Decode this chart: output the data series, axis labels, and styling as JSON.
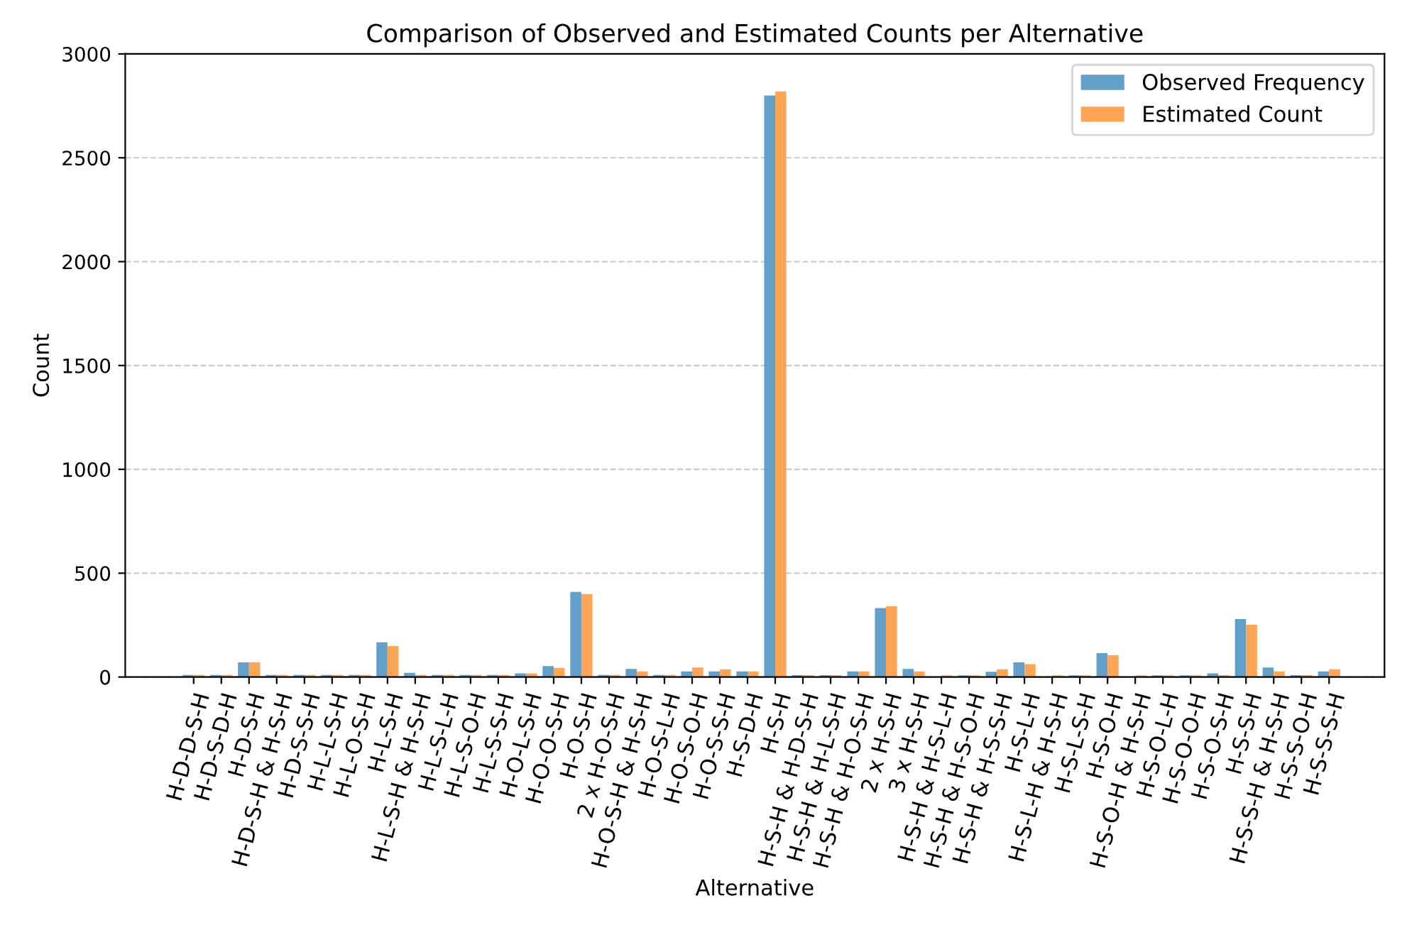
{
  "chart_data": {
    "type": "bar",
    "title": "Comparison of Observed and Estimated Counts per Alternative",
    "xlabel": "Alternative",
    "ylabel": "Count",
    "categories": [
      "H-D-D-S-H",
      "H-D-S-D-H",
      "H-D-S-H",
      "H-D-S-H & H-S-H",
      "H-D-S-S-H",
      "H-L-L-S-H",
      "H-L-O-S-H",
      "H-L-S-H",
      "H-L-S-H & H-S-H",
      "H-L-S-L-H",
      "H-L-S-O-H",
      "H-L-S-S-H",
      "H-O-L-S-H",
      "H-O-O-S-H",
      "H-O-S-H",
      "2 x H-O-S-H",
      "H-O-S-H & H-S-H",
      "H-O-S-L-H",
      "H-O-S-O-H",
      "H-O-S-S-H",
      "H-S-D-H",
      "H-S-H",
      "H-S-H & H-D-S-H",
      "H-S-H & H-L-S-H",
      "H-S-H & H-O-S-H",
      "2 x H-S-H",
      "3 x H-S-H",
      "H-S-H & H-S-L-H",
      "H-S-H & H-S-O-H",
      "H-S-H & H-S-S-H",
      "H-S-L-H",
      "H-S-L-H & H-S-H",
      "H-S-L-S-H",
      "H-S-O-H",
      "H-S-O-H & H-S-H",
      "H-S-O-L-H",
      "H-S-O-O-H",
      "H-S-O-S-H",
      "H-S-S-H",
      "H-S-S-H & H-S-H",
      "H-S-S-O-H",
      "H-S-S-S-H"
    ],
    "series": [
      {
        "name": "Observed Frequency",
        "color": "#62a0ca",
        "values": [
          10,
          10,
          71,
          10,
          10,
          10,
          10,
          167,
          20,
          10,
          10,
          10,
          18,
          53,
          410,
          10,
          39,
          10,
          27,
          27,
          27,
          2800,
          9,
          9,
          27,
          332,
          39,
          0,
          8,
          25,
          71,
          0,
          8,
          115,
          0,
          8,
          8,
          18,
          279,
          46,
          9,
          27
        ]
      },
      {
        "name": "Estimated Count",
        "color": "#ffa556",
        "values": [
          10,
          10,
          71,
          10,
          10,
          10,
          10,
          149,
          10,
          10,
          10,
          10,
          18,
          44,
          400,
          10,
          27,
          10,
          46,
          37,
          27,
          2820,
          9,
          9,
          27,
          341,
          27,
          8,
          8,
          37,
          62,
          8,
          8,
          105,
          8,
          8,
          8,
          9,
          252,
          27,
          9,
          37
        ]
      }
    ],
    "ylim": [
      0,
      3000
    ],
    "yticks": [
      0,
      500,
      1000,
      1500,
      2000,
      2500,
      3000
    ],
    "grid": "y",
    "legend": "top right"
  }
}
